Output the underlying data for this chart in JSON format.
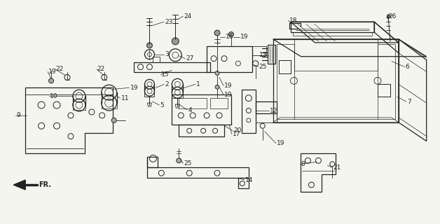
{
  "bg_color": "#f5f5f0",
  "line_color": "#222222",
  "fig_width": 6.28,
  "fig_height": 3.2,
  "dpi": 100
}
